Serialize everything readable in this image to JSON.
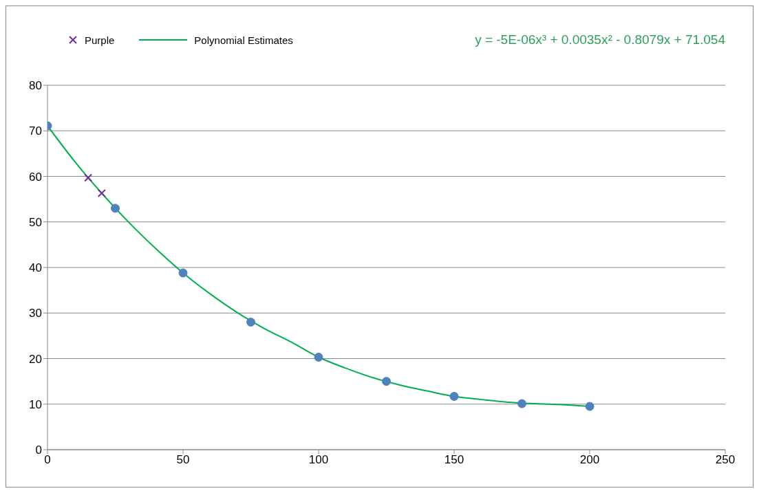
{
  "chart_data": {
    "type": "scatter",
    "annotations": [
      "y = -5E-06x³ + 0.0035x² - 0.8079x + 71.054"
    ],
    "series": [
      {
        "color": "#4f81bd",
        "x": [
          0,
          25,
          50,
          75,
          100,
          125,
          150,
          175,
          200
        ],
        "values": [
          71.1,
          53,
          38.8,
          28,
          20.3,
          15,
          11.7,
          10.1,
          9.5
        ],
        "marker": "circle"
      },
      {
        "name": "Purple",
        "color": "#7030a0",
        "x": [
          15,
          20
        ],
        "values": [
          59.7,
          56.3
        ],
        "marker": "cross"
      },
      {
        "name": "Polynomial Estimates",
        "type": "line",
        "color": "#00b050",
        "marker": "none",
        "line_style": "solid",
        "x": [
          0,
          10,
          20,
          30,
          40,
          50,
          60,
          70,
          80,
          90,
          100,
          110,
          120,
          130,
          140,
          150,
          160,
          170,
          180,
          190,
          200
        ],
        "values": [
          71.1,
          63.3,
          56.3,
          49.9,
          44.1,
          38.8,
          34.2,
          30.1,
          26.6,
          23.6,
          20.3,
          17.9,
          15.8,
          14.2,
          12.9,
          11.7,
          11,
          10.4,
          10.1,
          9.9,
          9.5
        ]
      }
    ],
    "xlim": [
      0,
      250
    ],
    "xticks": [
      0,
      50,
      100,
      150,
      200,
      250
    ],
    "ylim": [
      0,
      80
    ],
    "yticks": [
      0,
      10,
      20,
      30,
      40,
      50,
      60,
      70,
      80
    ],
    "grid": "y",
    "legend": "top left"
  }
}
